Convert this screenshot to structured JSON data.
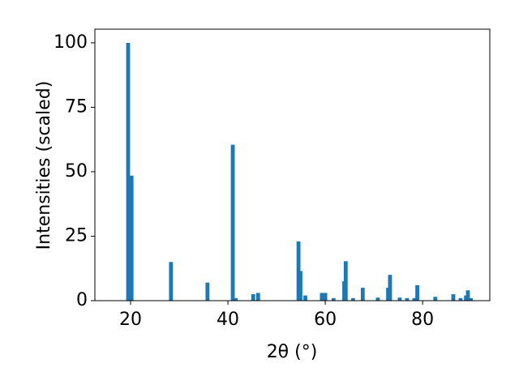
{
  "chart_data": {
    "type": "bar",
    "xlabel": "2θ (°)",
    "ylabel": "Intensities (scaled)",
    "x": [
      19.5,
      20.2,
      28.3,
      35.8,
      41.0,
      41.6,
      45.2,
      46.2,
      54.5,
      54.9,
      55.9,
      59.3,
      60.0,
      61.7,
      63.9,
      64.2,
      65.7,
      67.7,
      70.8,
      72.9,
      73.3,
      75.3,
      76.8,
      78.3,
      78.9,
      82.6,
      86.3,
      87.8,
      88.9,
      89.3,
      89.9
    ],
    "values": [
      100,
      48.5,
      15,
      7,
      60.5,
      1,
      2.5,
      3,
      23,
      11.5,
      2,
      3,
      3,
      1,
      7.5,
      15.3,
      1,
      5,
      1.2,
      5,
      10,
      1.2,
      1,
      1,
      6,
      1.5,
      2.5,
      1,
      2,
      4,
      1
    ],
    "color": "#1f77b4",
    "xlim": [
      12.67,
      93.8
    ],
    "xticks": [
      20,
      40,
      60,
      80
    ],
    "ylim": [
      0,
      105.3
    ],
    "yticks": [
      0,
      25,
      50,
      75,
      100
    ]
  }
}
